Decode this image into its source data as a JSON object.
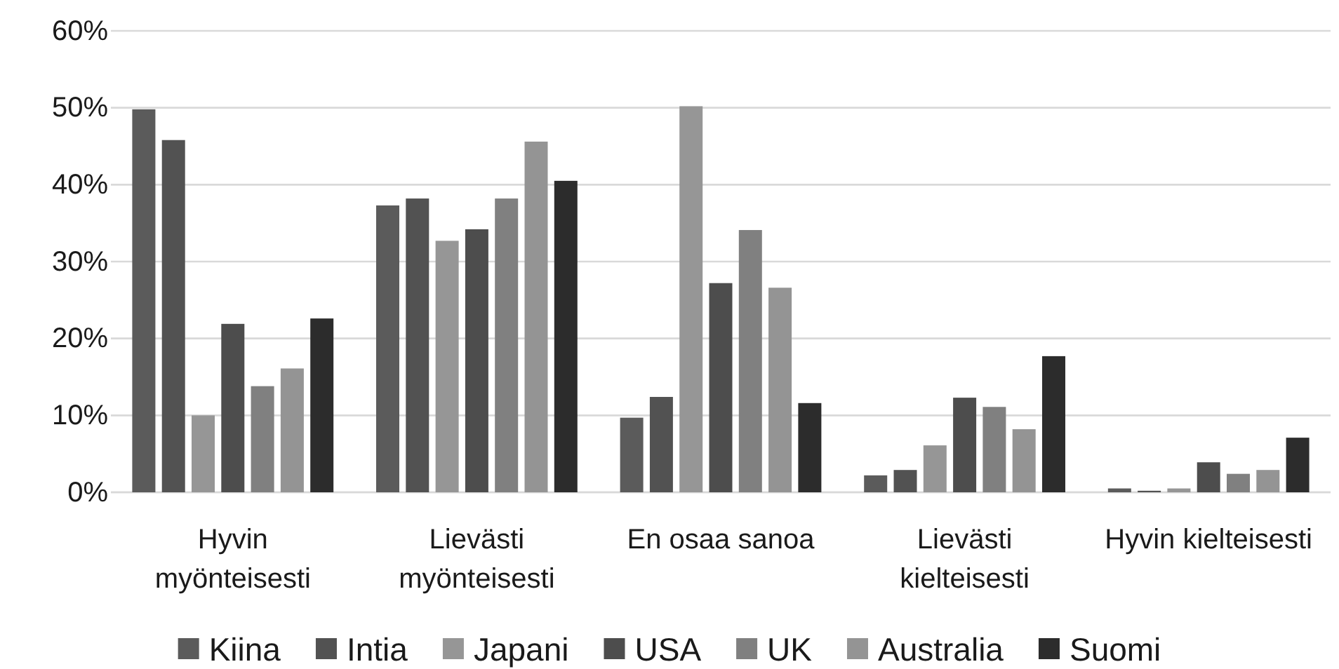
{
  "chart_data": {
    "type": "bar",
    "categories": [
      "Hyvin\nmyönteisesti",
      "Lievästi\nmyönteisesti",
      "En osaa sanoa",
      "Lievästi\nkielteisesti",
      "Hyvin kielteisesti"
    ],
    "series": [
      {
        "name": "Kiina",
        "color": "#5b5b5b",
        "values": [
          49.8,
          37.3,
          9.7,
          2.2,
          0.5
        ]
      },
      {
        "name": "Intia",
        "color": "#525252",
        "values": [
          45.8,
          38.2,
          12.4,
          2.9,
          0.2
        ]
      },
      {
        "name": "Japani",
        "color": "#969696",
        "values": [
          10.0,
          32.7,
          50.2,
          6.1,
          0.5
        ]
      },
      {
        "name": "USA",
        "color": "#4d4d4d",
        "values": [
          21.9,
          34.2,
          27.2,
          12.3,
          3.9
        ]
      },
      {
        "name": "UK",
        "color": "#808080",
        "values": [
          13.8,
          38.2,
          34.1,
          11.1,
          2.4
        ]
      },
      {
        "name": "Australia",
        "color": "#949494",
        "values": [
          16.1,
          45.6,
          26.6,
          8.2,
          2.9
        ]
      },
      {
        "name": "Suomi",
        "color": "#2c2c2c",
        "values": [
          22.6,
          40.5,
          11.6,
          17.7,
          7.1
        ]
      }
    ],
    "ylim": [
      0,
      60
    ],
    "yticks": [
      {
        "value": 0,
        "label": "0%"
      },
      {
        "value": 10,
        "label": "10%"
      },
      {
        "value": 20,
        "label": "20%"
      },
      {
        "value": 30,
        "label": "30%"
      },
      {
        "value": 40,
        "label": "40%"
      },
      {
        "value": 50,
        "label": "50%"
      },
      {
        "value": 60,
        "label": "60%"
      }
    ],
    "grid": "y",
    "legend": "bottom"
  }
}
